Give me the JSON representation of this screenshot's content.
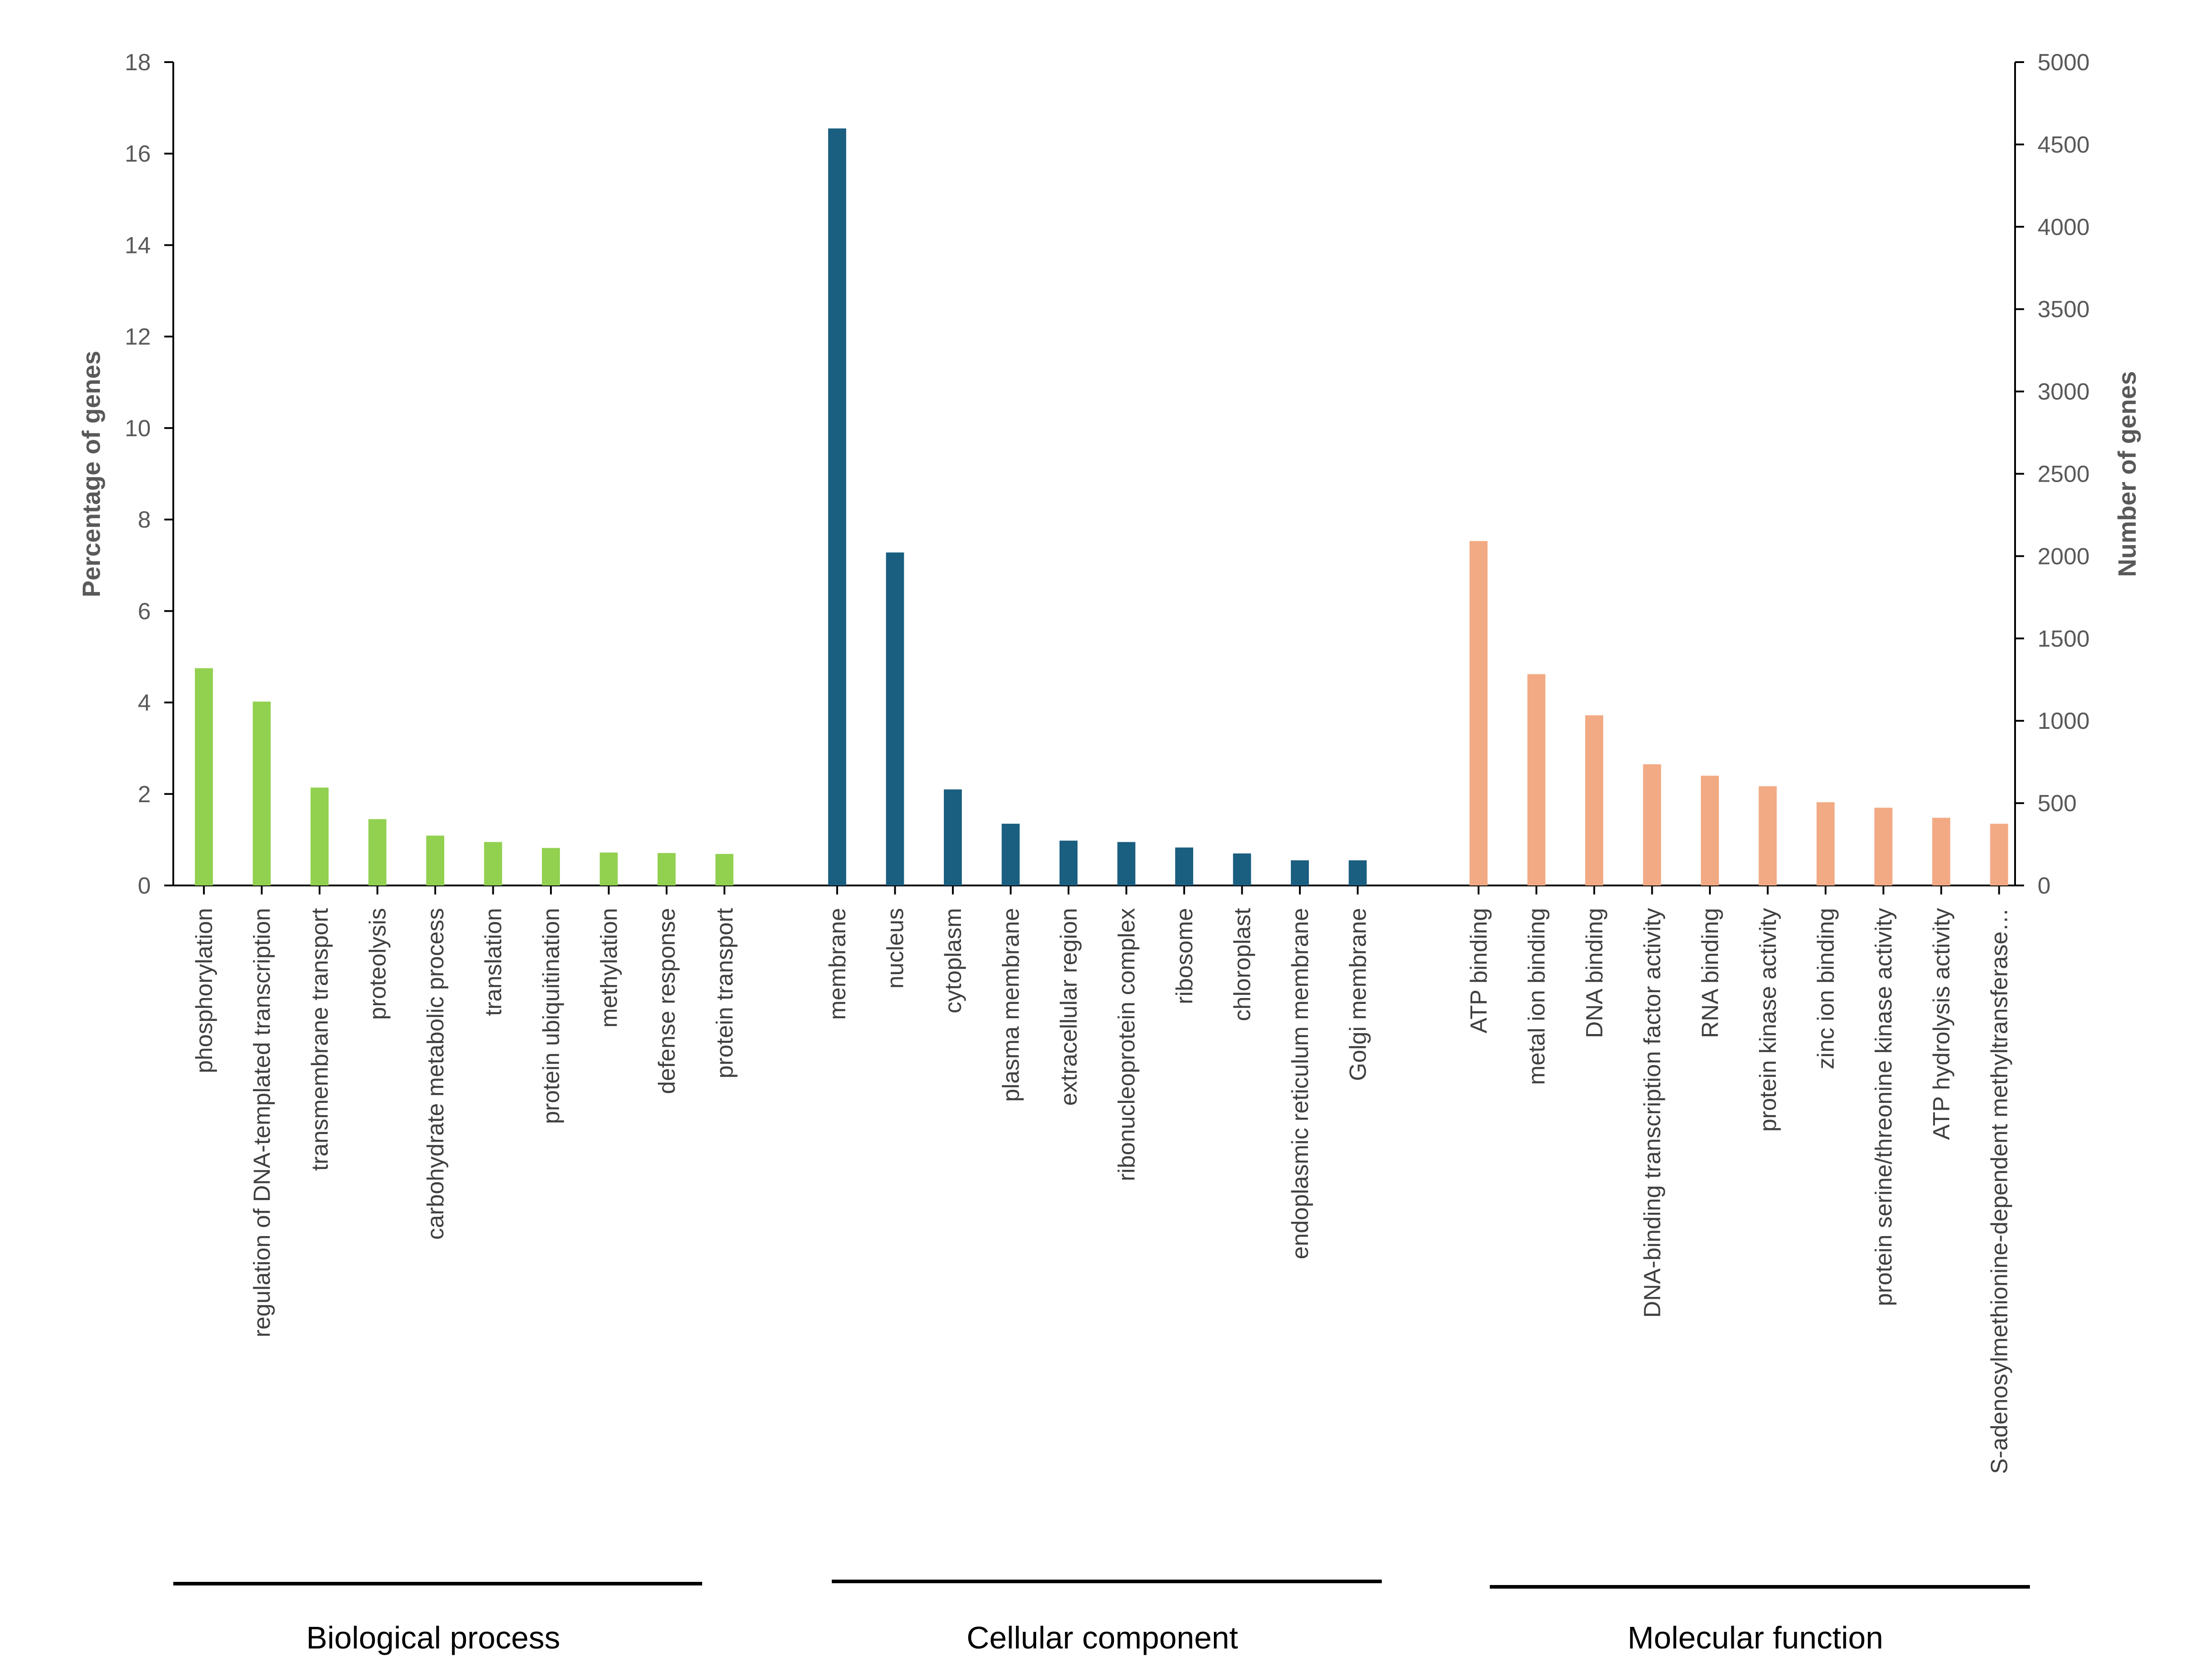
{
  "chart_data": {
    "type": "bar",
    "ylabel": "Percentage of genes",
    "y2label": "Number of genes",
    "ylim": [
      0,
      18
    ],
    "y_ticks": [
      "0",
      "2",
      "4",
      "6",
      "8",
      "10",
      "12",
      "14",
      "16",
      "18"
    ],
    "y2lim": [
      0,
      5000
    ],
    "y2_ticks": [
      "0",
      "500",
      "1000",
      "1500",
      "2000",
      "2500",
      "3000",
      "3500",
      "4000",
      "4500",
      "5000"
    ],
    "grid": false,
    "groups": [
      {
        "name": "Biological process",
        "color": "#92D050",
        "categories": [
          "phosphorylation",
          "regulation of DNA-templated transcription",
          "transmembrane transport",
          "proteolysis",
          "carbohydrate metabolic process",
          "translation",
          "protein ubiquitination",
          "methylation",
          "defense response",
          "protein transport"
        ],
        "values": [
          4.75,
          4.02,
          2.14,
          1.45,
          1.09,
          0.95,
          0.82,
          0.72,
          0.71,
          0.69
        ]
      },
      {
        "name": "Cellular component",
        "color": "#1A5E80",
        "categories": [
          "membrane",
          "nucleus",
          "cytoplasm",
          "plasma membrane",
          "extracellular region",
          "ribonucleoprotein complex",
          "ribosome",
          "chloroplast",
          "endoplasmic reticulum membrane",
          "Golgi membrane"
        ],
        "values": [
          16.55,
          7.28,
          2.1,
          1.35,
          0.98,
          0.95,
          0.83,
          0.7,
          0.55,
          0.55
        ]
      },
      {
        "name": "Molecular function",
        "color": "#F2AA84",
        "categories": [
          "ATP binding",
          "metal ion binding",
          "DNA binding",
          "DNA-binding transcription factor activity",
          "RNA binding",
          "protein kinase activity",
          "zinc ion binding",
          "protein serine/threonine kinase activity",
          "ATP hydrolysis activity",
          "S-adenosylmethionine-dependent methyltransferase…"
        ],
        "values": [
          7.53,
          4.62,
          3.72,
          2.65,
          2.4,
          2.17,
          1.82,
          1.7,
          1.48,
          1.35
        ]
      }
    ]
  }
}
